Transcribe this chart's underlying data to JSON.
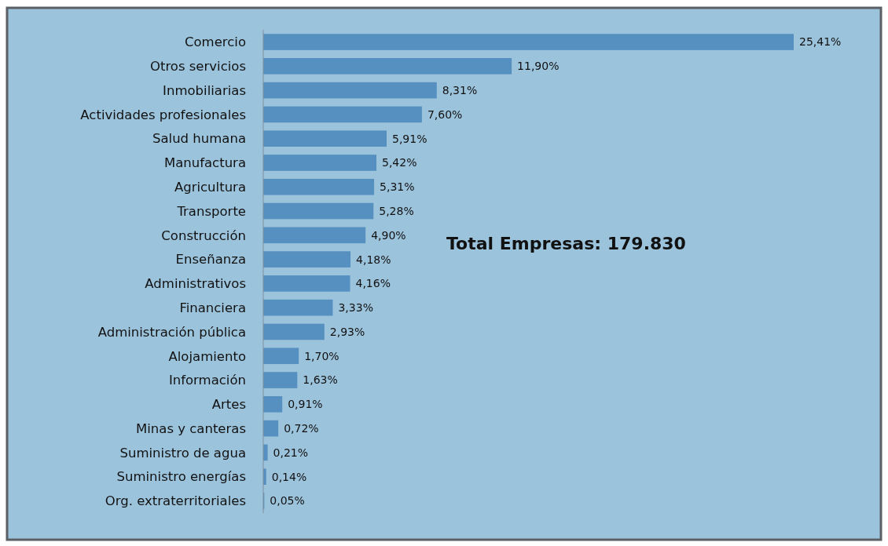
{
  "chart_data": {
    "type": "bar",
    "orientation": "horizontal",
    "categories": [
      "Comercio",
      "Otros servicios",
      "Inmobiliarias",
      "Actividades profesionales",
      "Salud humana",
      "Manufactura",
      "Agricultura",
      "Transporte",
      "Construcción",
      "Enseñanza",
      "Administrativos",
      "Financiera",
      "Administración pública",
      "Alojamiento",
      "Información",
      "Artes",
      "Minas y canteras",
      "Suministro de agua",
      "Suministro energías",
      "Org. extraterritoriales"
    ],
    "values": [
      25.41,
      11.9,
      8.31,
      7.6,
      5.91,
      5.42,
      5.31,
      5.28,
      4.9,
      4.18,
      4.16,
      3.33,
      2.93,
      1.7,
      1.63,
      0.91,
      0.72,
      0.21,
      0.14,
      0.05
    ],
    "value_labels": [
      "25,41%",
      "11,90%",
      "8,31%",
      "7,60%",
      "5,91%",
      "5,42%",
      "5,31%",
      "5,28%",
      "4,90%",
      "4,18%",
      "4,16%",
      "3,33%",
      "2,93%",
      "1,70%",
      "1,63%",
      "0,91%",
      "0,72%",
      "0,21%",
      "0,14%",
      "0,05%"
    ],
    "color": "#5590c0",
    "annotations": [
      "Total Empresas: 179.830"
    ]
  }
}
